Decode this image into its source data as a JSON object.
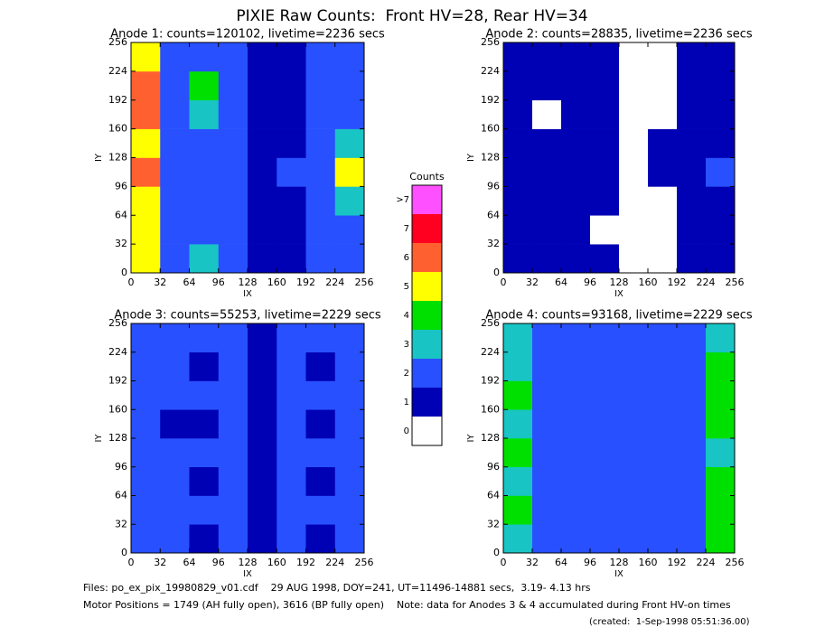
{
  "title": "PIXIE Raw Counts:  Front HV=28, Rear HV=34",
  "chart_data": [
    {
      "type": "heatmap",
      "title": "Anode 1: counts=120102, livetime=2236 secs",
      "xlabel": "IX",
      "ylabel": "IY",
      "xlim": [
        0,
        256
      ],
      "ylim": [
        0,
        256
      ],
      "xticks": [
        0,
        32,
        64,
        96,
        128,
        160,
        192,
        224,
        256
      ],
      "yticks": [
        0,
        32,
        64,
        96,
        128,
        160,
        192,
        224,
        256
      ],
      "z": [
        [
          5,
          2,
          3,
          2,
          1,
          1,
          2,
          2
        ],
        [
          5,
          2,
          2,
          2,
          1,
          1,
          2,
          2
        ],
        [
          5,
          2,
          2,
          2,
          1,
          1,
          2,
          3
        ],
        [
          6,
          2,
          2,
          2,
          1,
          2,
          2,
          5
        ],
        [
          5,
          2,
          2,
          2,
          1,
          1,
          2,
          3
        ],
        [
          6,
          2,
          3,
          2,
          1,
          1,
          2,
          2
        ],
        [
          6,
          2,
          4,
          2,
          1,
          1,
          2,
          2
        ],
        [
          5,
          2,
          2,
          2,
          1,
          1,
          2,
          2
        ]
      ]
    },
    {
      "type": "heatmap",
      "title": "Anode 2: counts=28835, livetime=2236 secs",
      "xlabel": "IX",
      "ylabel": "IY",
      "xlim": [
        0,
        256
      ],
      "ylim": [
        0,
        256
      ],
      "xticks": [
        0,
        32,
        64,
        96,
        128,
        160,
        192,
        224,
        256
      ],
      "yticks": [
        0,
        32,
        64,
        96,
        128,
        160,
        192,
        224,
        256
      ],
      "z": [
        [
          1,
          1,
          1,
          1,
          0,
          0,
          1,
          1
        ],
        [
          1,
          1,
          1,
          0,
          0,
          0,
          1,
          1
        ],
        [
          1,
          1,
          1,
          1,
          0,
          0,
          1,
          1
        ],
        [
          1,
          1,
          1,
          1,
          0,
          1,
          1,
          2
        ],
        [
          1,
          1,
          1,
          1,
          0,
          1,
          1,
          1
        ],
        [
          1,
          0,
          1,
          1,
          0,
          0,
          1,
          1
        ],
        [
          1,
          1,
          1,
          1,
          0,
          0,
          1,
          1
        ],
        [
          1,
          1,
          1,
          1,
          0,
          0,
          1,
          1
        ]
      ]
    },
    {
      "type": "heatmap",
      "title": "Anode 3: counts=55253, livetime=2229 secs",
      "xlabel": "IX",
      "ylabel": "IY",
      "xlim": [
        0,
        256
      ],
      "ylim": [
        0,
        256
      ],
      "xticks": [
        0,
        32,
        64,
        96,
        128,
        160,
        192,
        224,
        256
      ],
      "yticks": [
        0,
        32,
        64,
        96,
        128,
        160,
        192,
        224,
        256
      ],
      "z": [
        [
          2,
          2,
          1,
          2,
          1,
          2,
          1,
          2
        ],
        [
          2,
          2,
          2,
          2,
          1,
          2,
          2,
          2
        ],
        [
          2,
          2,
          1,
          2,
          1,
          2,
          1,
          2
        ],
        [
          2,
          2,
          2,
          2,
          1,
          2,
          2,
          2
        ],
        [
          2,
          1,
          1,
          2,
          1,
          2,
          1,
          2
        ],
        [
          2,
          2,
          2,
          2,
          1,
          2,
          2,
          2
        ],
        [
          2,
          2,
          1,
          2,
          1,
          2,
          1,
          2
        ],
        [
          2,
          2,
          2,
          2,
          1,
          2,
          2,
          2
        ]
      ]
    },
    {
      "type": "heatmap",
      "title": "Anode 4: counts=93168, livetime=2229 secs",
      "xlabel": "IX",
      "ylabel": "IY",
      "xlim": [
        0,
        256
      ],
      "ylim": [
        0,
        256
      ],
      "xticks": [
        0,
        32,
        64,
        96,
        128,
        160,
        192,
        224,
        256
      ],
      "yticks": [
        0,
        32,
        64,
        96,
        128,
        160,
        192,
        224,
        256
      ],
      "z": [
        [
          3,
          2,
          2,
          2,
          2,
          2,
          2,
          4
        ],
        [
          4,
          2,
          2,
          2,
          2,
          2,
          2,
          4
        ],
        [
          3,
          2,
          2,
          2,
          2,
          2,
          2,
          4
        ],
        [
          4,
          2,
          2,
          2,
          2,
          2,
          2,
          3
        ],
        [
          3,
          2,
          2,
          2,
          2,
          2,
          2,
          4
        ],
        [
          4,
          2,
          2,
          2,
          2,
          2,
          2,
          4
        ],
        [
          3,
          2,
          2,
          2,
          2,
          2,
          2,
          4
        ],
        [
          3,
          2,
          2,
          2,
          2,
          2,
          2,
          3
        ]
      ]
    },
    {
      "type": "colorbar",
      "title": "Counts",
      "ticks": [
        0,
        1,
        2,
        3,
        4,
        5,
        6,
        7,
        {
          "value": 8,
          "label": ">7"
        }
      ],
      "colors": [
        "#ffffff",
        "#0000b4",
        "#2850ff",
        "#18c4c4",
        "#00e000",
        "#ffff00",
        "#ff6030",
        "#ff0020",
        "#ff50ff"
      ]
    }
  ],
  "notes": [
    "Files: po_ex_pix_19980829_v01.cdf    29 AUG 1998, DOY=241, UT=11496-14881 secs,  3.19- 4.13 hrs",
    "Motor Positions = 1749 (AH fully open), 3616 (BP fully open)    Note: data for Anodes 3 & 4 accumulated during Front HV-on times",
    "(created:  1-Sep-1998 05:51:36.00)"
  ]
}
